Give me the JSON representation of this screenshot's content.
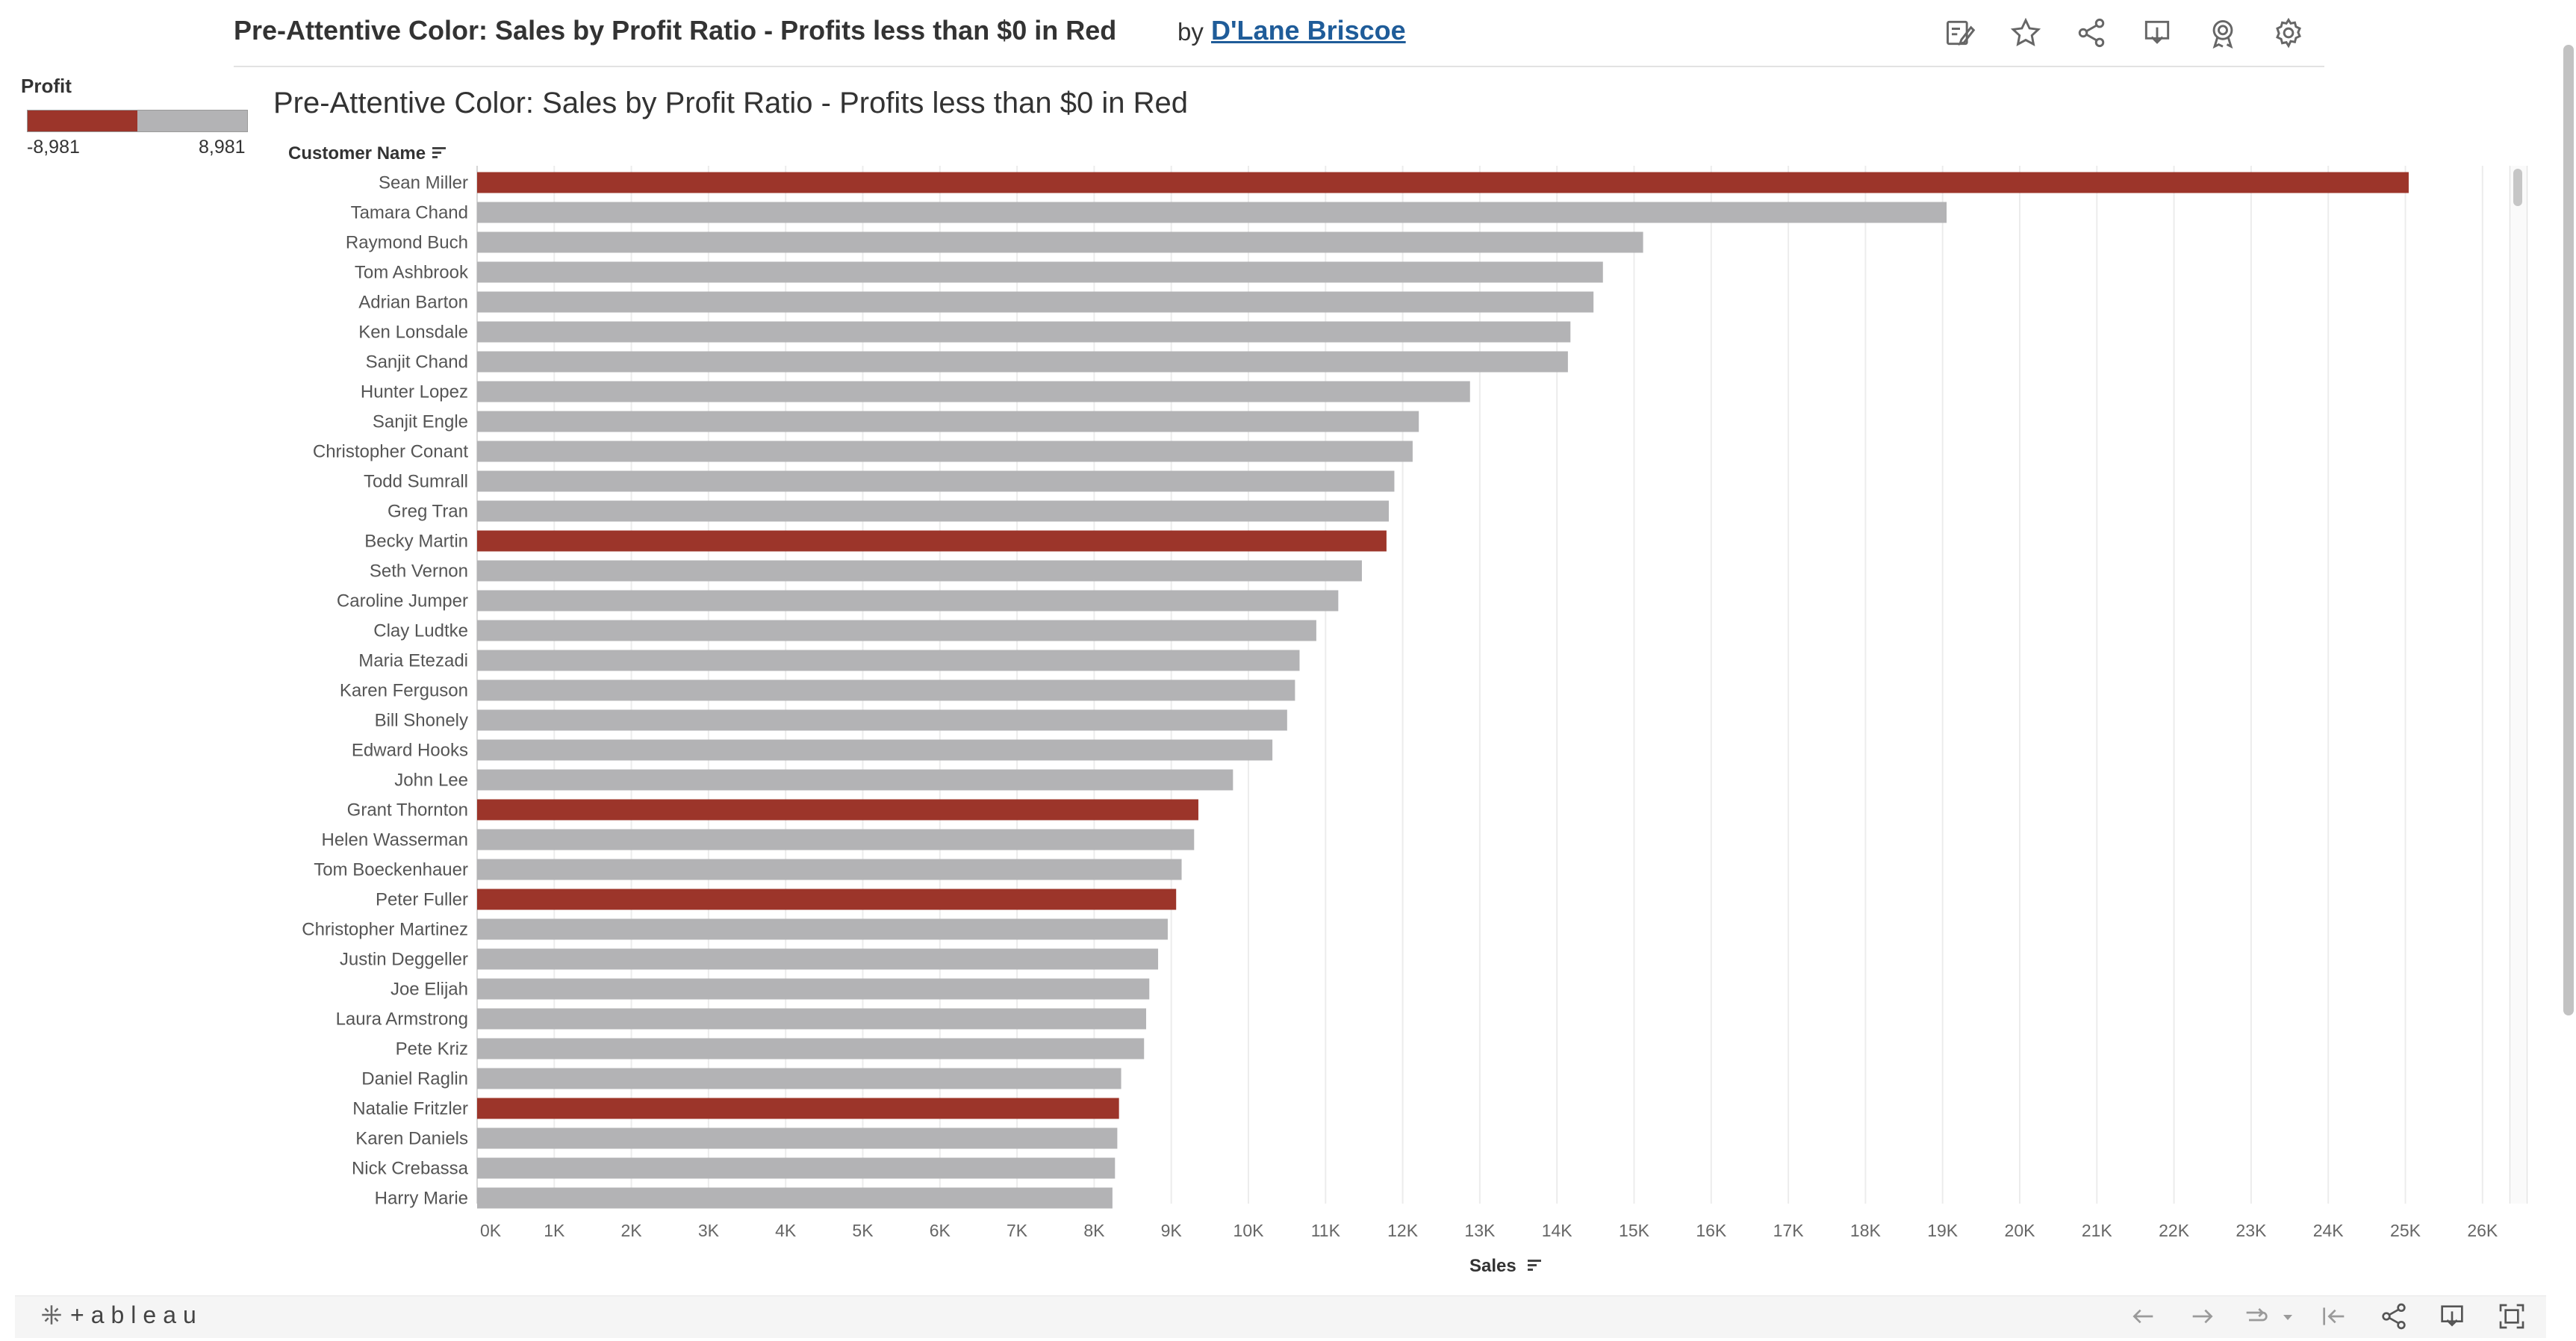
{
  "header": {
    "title": "Pre-Attentive Color: Sales by Profit Ratio - Profits less than $0 in Red",
    "by": "by",
    "author": "D'Lane Briscoe",
    "icons": [
      "edit-icon",
      "star-icon",
      "share-icon",
      "download-icon",
      "metrics-icon",
      "settings-icon"
    ]
  },
  "legend": {
    "title": "Profit",
    "min_label": "-8,981",
    "max_label": "8,981"
  },
  "footer": {
    "logo_text": "+ableau",
    "icons": [
      "undo-icon",
      "redo-icon",
      "revert-icon",
      "revert-dropdown-icon",
      "reset-icon",
      "share-icon",
      "download-icon",
      "fullscreen-icon"
    ]
  },
  "colors": {
    "negative_profit": "#9c352a",
    "positive_profit": "#b3b3b5",
    "link": "#1f5c99"
  },
  "chart_data": {
    "type": "bar",
    "orientation": "horizontal",
    "title": "Pre-Attentive Color: Sales by Profit Ratio - Profits less than $0 in Red",
    "row_header": "Customer Name",
    "xlabel": "Sales",
    "xlim": [
      0,
      26500
    ],
    "x_ticks": [
      "0K",
      "1K",
      "2K",
      "3K",
      "4K",
      "5K",
      "6K",
      "7K",
      "8K",
      "9K",
      "10K",
      "11K",
      "12K",
      "13K",
      "14K",
      "15K",
      "16K",
      "17K",
      "18K",
      "19K",
      "20K",
      "21K",
      "22K",
      "23K",
      "24K",
      "25K",
      "26K"
    ],
    "grid": true,
    "color_encoding": "Profits less than $0 in Red",
    "categories": [
      "Sean Miller",
      "Tamara Chand",
      "Raymond Buch",
      "Tom Ashbrook",
      "Adrian Barton",
      "Ken Lonsdale",
      "Sanjit Chand",
      "Hunter Lopez",
      "Sanjit Engle",
      "Christopher Conant",
      "Todd Sumrall",
      "Greg Tran",
      "Becky Martin",
      "Seth Vernon",
      "Caroline Jumper",
      "Clay Ludtke",
      "Maria Etezadi",
      "Karen Ferguson",
      "Bill Shonely",
      "Edward Hooks",
      "John Lee",
      "Grant Thornton",
      "Helen Wasserman",
      "Tom Boeckenhauer",
      "Peter Fuller",
      "Christopher Martinez",
      "Justin Deggeller",
      "Joe Elijah",
      "Laura Armstrong",
      "Pete Kriz",
      "Daniel Raglin",
      "Natalie Fritzler",
      "Karen Daniels",
      "Nick Crebassa",
      "Harry Marie"
    ],
    "values": [
      25043,
      19052,
      15117,
      14596,
      14474,
      14175,
      14142,
      12873,
      12209,
      12129,
      11892,
      11820,
      11790,
      11471,
      11165,
      10880,
      10663,
      10604,
      10502,
      10311,
      9800,
      9351,
      9296,
      9134,
      9063,
      8954,
      8829,
      8715,
      8674,
      8647,
      8350,
      8322,
      8300,
      8270,
      8237
    ],
    "negative_profit": [
      true,
      false,
      false,
      false,
      false,
      false,
      false,
      false,
      false,
      false,
      false,
      false,
      true,
      false,
      false,
      false,
      false,
      false,
      false,
      false,
      false,
      true,
      false,
      false,
      true,
      false,
      false,
      false,
      false,
      false,
      false,
      true,
      false,
      false,
      false
    ]
  }
}
